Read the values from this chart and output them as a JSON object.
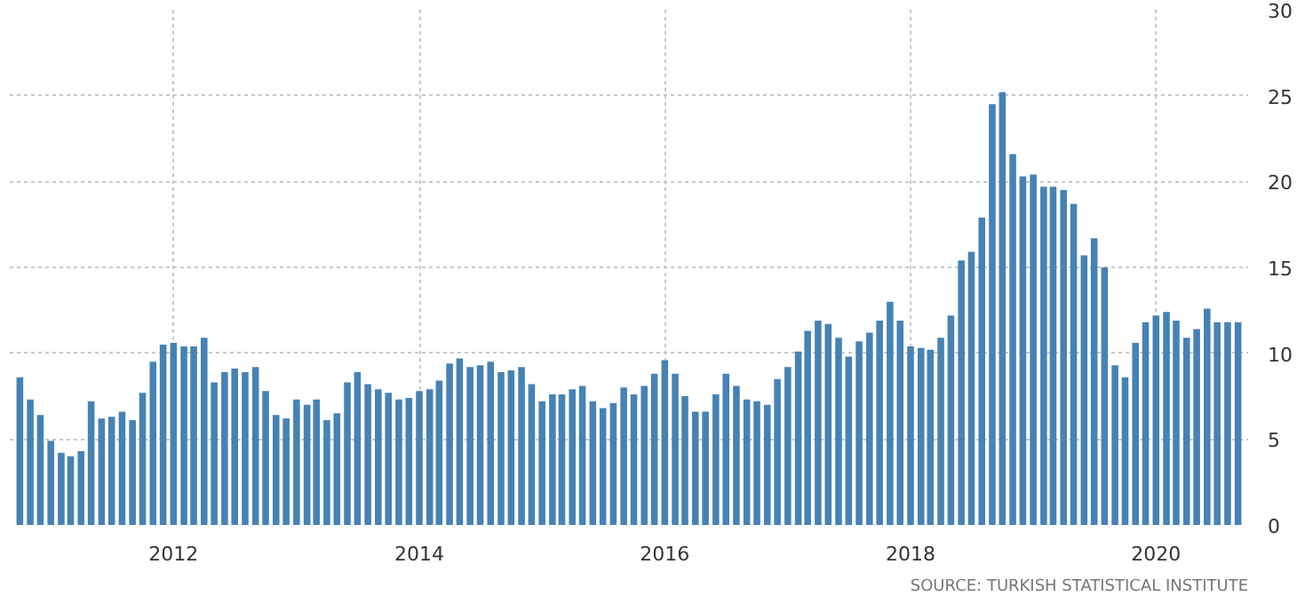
{
  "chart_data": {
    "type": "bar",
    "color": "#4682b4",
    "x": [
      "2010-10",
      "2010-11",
      "2010-12",
      "2011-01",
      "2011-02",
      "2011-03",
      "2011-04",
      "2011-05",
      "2011-06",
      "2011-07",
      "2011-08",
      "2011-09",
      "2011-10",
      "2011-11",
      "2011-12",
      "2012-01",
      "2012-02",
      "2012-03",
      "2012-04",
      "2012-05",
      "2012-06",
      "2012-07",
      "2012-08",
      "2012-09",
      "2012-10",
      "2012-11",
      "2012-12",
      "2013-01",
      "2013-02",
      "2013-03",
      "2013-04",
      "2013-05",
      "2013-06",
      "2013-07",
      "2013-08",
      "2013-09",
      "2013-10",
      "2013-11",
      "2013-12",
      "2014-01",
      "2014-02",
      "2014-03",
      "2014-04",
      "2014-05",
      "2014-06",
      "2014-07",
      "2014-08",
      "2014-09",
      "2014-10",
      "2014-11",
      "2014-12",
      "2015-01",
      "2015-02",
      "2015-03",
      "2015-04",
      "2015-05",
      "2015-06",
      "2015-07",
      "2015-08",
      "2015-09",
      "2015-10",
      "2015-11",
      "2015-12",
      "2016-01",
      "2016-02",
      "2016-03",
      "2016-04",
      "2016-05",
      "2016-06",
      "2016-07",
      "2016-08",
      "2016-09",
      "2016-10",
      "2016-11",
      "2016-12",
      "2017-01",
      "2017-02",
      "2017-03",
      "2017-04",
      "2017-05",
      "2017-06",
      "2017-07",
      "2017-08",
      "2017-09",
      "2017-10",
      "2017-11",
      "2017-12",
      "2018-01",
      "2018-02",
      "2018-03",
      "2018-04",
      "2018-05",
      "2018-06",
      "2018-07",
      "2018-08",
      "2018-09",
      "2018-10",
      "2018-11",
      "2018-12",
      "2019-01",
      "2019-02",
      "2019-03",
      "2019-04",
      "2019-05",
      "2019-06",
      "2019-07",
      "2019-08",
      "2019-09",
      "2019-10",
      "2019-11",
      "2019-12",
      "2020-01",
      "2020-02",
      "2020-03",
      "2020-04",
      "2020-05",
      "2020-06",
      "2020-07",
      "2020-08",
      "2020-09"
    ],
    "values": [
      8.6,
      7.3,
      6.4,
      4.9,
      4.2,
      4.0,
      4.3,
      7.2,
      6.2,
      6.3,
      6.6,
      6.1,
      7.7,
      9.5,
      10.5,
      10.6,
      10.4,
      10.4,
      10.9,
      8.3,
      8.9,
      9.1,
      8.9,
      9.2,
      7.8,
      6.4,
      6.2,
      7.3,
      7.0,
      7.3,
      6.1,
      6.5,
      8.3,
      8.9,
      8.2,
      7.9,
      7.7,
      7.3,
      7.4,
      7.8,
      7.9,
      8.4,
      9.4,
      9.7,
      9.2,
      9.3,
      9.5,
      8.9,
      9.0,
      9.2,
      8.2,
      7.2,
      7.6,
      7.6,
      7.9,
      8.1,
      7.2,
      6.8,
      7.1,
      8.0,
      7.6,
      8.1,
      8.8,
      9.6,
      8.8,
      7.5,
      6.6,
      6.6,
      7.6,
      8.8,
      8.1,
      7.3,
      7.2,
      7.0,
      8.5,
      9.2,
      10.1,
      11.3,
      11.9,
      11.7,
      10.9,
      9.8,
      10.7,
      11.2,
      11.9,
      13.0,
      11.9,
      10.4,
      10.3,
      10.2,
      10.9,
      12.2,
      15.4,
      15.9,
      17.9,
      24.5,
      25.2,
      21.6,
      20.3,
      20.4,
      19.7,
      19.7,
      19.5,
      18.7,
      15.7,
      16.7,
      15.0,
      9.3,
      8.6,
      10.6,
      11.8,
      12.2,
      12.4,
      11.9,
      10.9,
      11.4,
      12.6,
      11.8,
      11.8,
      11.8
    ],
    "xlim": [
      "2010-09",
      "2020-10"
    ],
    "xticks": [
      {
        "value": "2012-01",
        "label": "2012"
      },
      {
        "value": "2014-01",
        "label": "2014"
      },
      {
        "value": "2016-01",
        "label": "2016"
      },
      {
        "value": "2018-01",
        "label": "2018"
      },
      {
        "value": "2020-01",
        "label": "2020"
      }
    ],
    "ylim": [
      0,
      30
    ],
    "yticks": [
      0,
      5,
      10,
      15,
      20,
      25,
      30
    ],
    "grid": true,
    "annotations": [
      "SOURCE: TURKISH STATISTICAL INSTITUTE"
    ]
  }
}
